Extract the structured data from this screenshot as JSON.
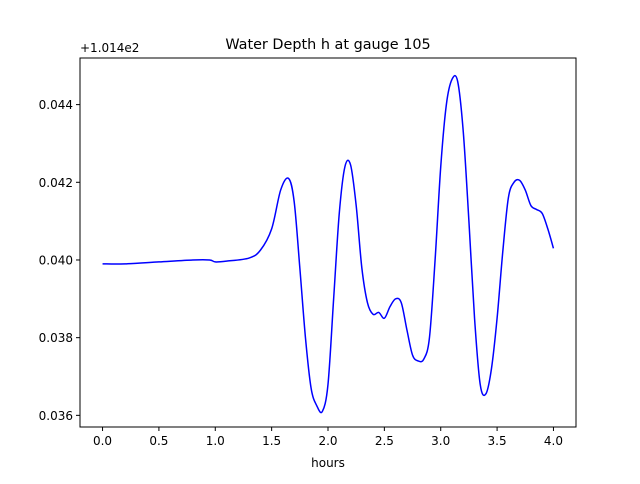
{
  "chart_data": {
    "type": "line",
    "title": "Water Depth h at gauge 105",
    "xlabel": "hours",
    "ylabel": "",
    "y_offset_label": "+1.014e2",
    "xlim": [
      -0.2,
      4.2
    ],
    "ylim": [
      0.0357,
      0.0452
    ],
    "xticks": [
      0.0,
      0.5,
      1.0,
      1.5,
      2.0,
      2.5,
      3.0,
      3.5,
      4.0
    ],
    "xtick_labels": [
      "0.0",
      "0.5",
      "1.0",
      "1.5",
      "2.0",
      "2.5",
      "3.0",
      "3.5",
      "4.0"
    ],
    "yticks": [
      0.036,
      0.038,
      0.04,
      0.042,
      0.044
    ],
    "ytick_labels": [
      "0.036",
      "0.038",
      "0.040",
      "0.042",
      "0.044"
    ],
    "grid": false,
    "series": [
      {
        "color": "#0000ff",
        "x": [
          0.0,
          0.2,
          0.5,
          0.8,
          0.95,
          1.0,
          1.1,
          1.3,
          1.4,
          1.5,
          1.58,
          1.65,
          1.7,
          1.75,
          1.8,
          1.85,
          1.9,
          1.95,
          2.0,
          2.05,
          2.1,
          2.15,
          2.2,
          2.25,
          2.3,
          2.35,
          2.4,
          2.45,
          2.5,
          2.55,
          2.6,
          2.65,
          2.7,
          2.75,
          2.8,
          2.85,
          2.9,
          2.95,
          3.0,
          3.05,
          3.1,
          3.15,
          3.2,
          3.25,
          3.3,
          3.35,
          3.4,
          3.45,
          3.5,
          3.55,
          3.6,
          3.65,
          3.7,
          3.75,
          3.8,
          3.85,
          3.9,
          3.95,
          4.0
        ],
        "y": [
          0.0399,
          0.0399,
          0.03995,
          0.04,
          0.04,
          0.03995,
          0.03997,
          0.04005,
          0.04025,
          0.0408,
          0.0418,
          0.0421,
          0.0415,
          0.0398,
          0.038,
          0.0367,
          0.03625,
          0.0361,
          0.0368,
          0.039,
          0.0412,
          0.0424,
          0.04245,
          0.0414,
          0.0398,
          0.0389,
          0.0386,
          0.03865,
          0.0385,
          0.0388,
          0.039,
          0.0389,
          0.0382,
          0.03755,
          0.0374,
          0.03745,
          0.038,
          0.04,
          0.0424,
          0.044,
          0.04465,
          0.0446,
          0.0433,
          0.041,
          0.0385,
          0.0368,
          0.03655,
          0.0372,
          0.0385,
          0.0402,
          0.0416,
          0.042,
          0.04205,
          0.0418,
          0.0414,
          0.0413,
          0.0412,
          0.0408,
          0.0403
        ]
      }
    ]
  }
}
